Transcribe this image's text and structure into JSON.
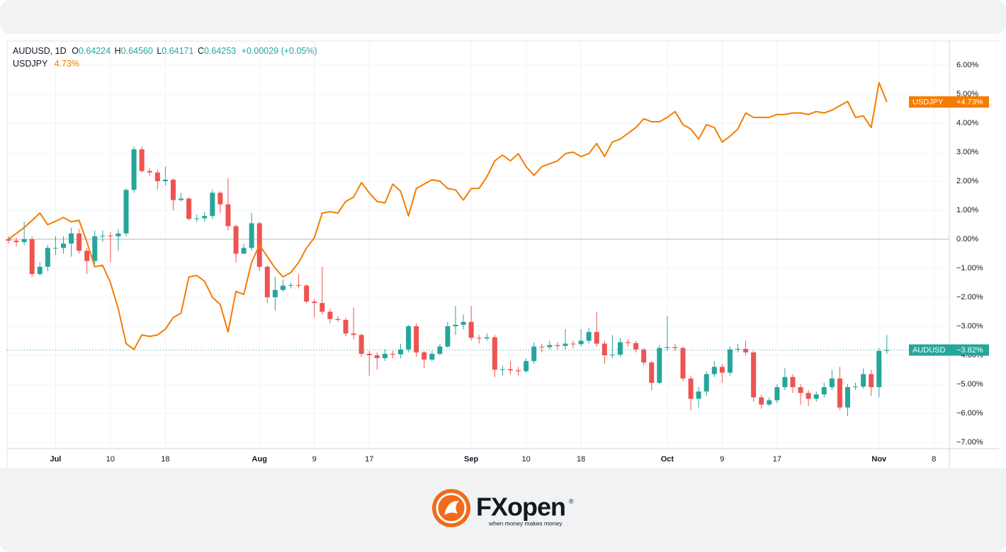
{
  "chart_data": {
    "type": "candlestick",
    "legend": {
      "symbol": "AUDUSD, 1D",
      "fields": [
        {
          "label": "O",
          "value": "0.64224"
        },
        {
          "label": "H",
          "value": "0.64560"
        },
        {
          "label": "L",
          "value": "0.64171"
        },
        {
          "label": "C",
          "value": "0.64253"
        }
      ],
      "change": "+0.00029 (+0.05%)",
      "overlay_value": "4.73%"
    },
    "categories": [
      null,
      null,
      null,
      null,
      null,
      null,
      "Jul",
      null,
      null,
      null,
      null,
      null,
      null,
      "10",
      null,
      null,
      null,
      null,
      null,
      null,
      "18",
      null,
      null,
      null,
      null,
      null,
      null,
      null,
      null,
      null,
      null,
      null,
      "Aug",
      null,
      null,
      null,
      null,
      null,
      null,
      "9",
      null,
      null,
      null,
      null,
      null,
      null,
      "17",
      null,
      null,
      null,
      null,
      null,
      null,
      null,
      null,
      null,
      null,
      null,
      null,
      "Sep",
      null,
      null,
      null,
      null,
      null,
      null,
      "10",
      null,
      null,
      null,
      null,
      null,
      null,
      "18",
      null,
      null,
      null,
      null,
      null,
      null,
      null,
      null,
      null,
      null,
      "Oct",
      null,
      null,
      null,
      null,
      null,
      null,
      "9",
      null,
      null,
      null,
      null,
      null,
      null,
      "17",
      null,
      null,
      null,
      null,
      null,
      null,
      null,
      null,
      null,
      null,
      null,
      null,
      "Nov",
      null,
      null,
      null,
      null,
      null,
      null,
      "8",
      null
    ],
    "series": [
      {
        "name": "AUDUSD",
        "type": "candlestick",
        "up_color": "#26a69a",
        "down_color": "#ef5350",
        "last_label": "−3.82%",
        "open": [
          0,
          -0.05,
          -0.1,
          0.0,
          -1.2,
          -0.95,
          -0.3,
          -0.3,
          -0.15,
          0.2,
          -0.4,
          -0.75,
          0.1,
          0.12,
          0.1,
          0.2,
          1.7,
          3.1,
          2.35,
          2.3,
          2.0,
          2.05,
          1.35,
          1.4,
          0.7,
          0.72,
          0.8,
          1.6,
          1.2,
          0.45,
          -0.5,
          -0.3,
          0.55,
          -0.95,
          -2.0,
          -1.75,
          -1.6,
          -1.58,
          -1.6,
          -2.15,
          -2.2,
          -2.5,
          -2.75,
          -2.78,
          -3.25,
          -3.3,
          -3.95,
          -4.0,
          -4.1,
          -3.95,
          -3.97,
          -3.8,
          -3.0,
          -3.9,
          -4.15,
          -3.95,
          -3.7,
          -3.0,
          -2.95,
          -2.85,
          -3.4,
          -3.42,
          -3.38,
          -4.5,
          -4.48,
          -4.52,
          -4.55,
          -4.2,
          -3.7,
          -3.72,
          -3.65,
          -3.68,
          -3.6,
          -3.62,
          -3.5,
          -3.2,
          -3.6,
          -4.0,
          -3.98,
          -3.55,
          -3.58,
          -3.8,
          -4.25,
          -4.95,
          -3.75,
          -3.72,
          -3.75,
          -4.8,
          -5.5,
          -5.25,
          -4.65,
          -4.4,
          -4.6,
          -3.8,
          -3.78,
          -3.9,
          -5.45,
          -5.7,
          -5.55,
          -5.1,
          -4.75,
          -5.1,
          -5.3,
          -5.5,
          -5.35,
          -5.1,
          -4.8,
          -5.8,
          -5.1,
          -5.08,
          -4.65,
          -5.1,
          -3.85,
          null,
          null,
          null,
          null,
          null,
          null,
          null
        ],
        "high": [
          0.1,
          0.05,
          0.6,
          0.1,
          -0.8,
          -0.2,
          0.1,
          0.1,
          0.4,
          0.35,
          -0.3,
          0.3,
          0.3,
          0.25,
          0.35,
          1.75,
          3.2,
          3.2,
          2.45,
          2.4,
          2.5,
          2.1,
          1.6,
          1.45,
          0.85,
          0.95,
          1.7,
          1.65,
          2.1,
          0.5,
          -0.15,
          0.9,
          0.6,
          -0.9,
          -1.3,
          -1.4,
          -1.5,
          -1.2,
          -1.55,
          -2.05,
          -0.95,
          -2.4,
          -2.65,
          -2.7,
          -2.35,
          -3.25,
          -3.85,
          -3.9,
          -3.8,
          -3.85,
          -3.6,
          -2.95,
          -2.9,
          -3.85,
          -3.85,
          -3.6,
          -2.85,
          -2.3,
          -2.6,
          -2.3,
          -3.3,
          -3.25,
          -3.3,
          -4.35,
          -4.2,
          -4.4,
          -4.1,
          -3.55,
          -3.6,
          -3.5,
          -3.55,
          -3.1,
          -3.5,
          -3.1,
          -3.05,
          -2.5,
          -3.5,
          -3.3,
          -3.4,
          -3.45,
          -3.5,
          -3.75,
          -4.2,
          -3.65,
          -2.65,
          -3.6,
          -3.7,
          -4.7,
          -5.1,
          -4.55,
          -4.2,
          -4.3,
          -3.7,
          -3.6,
          -3.5,
          -3.85,
          -5.35,
          -5.45,
          -5.0,
          -4.45,
          -4.65,
          -5.0,
          -5.2,
          -5.25,
          -4.95,
          -4.5,
          -4.4,
          -5.0,
          -4.95,
          -4.45,
          -4.5,
          -3.75,
          -3.3,
          null,
          null,
          null,
          null,
          null,
          null,
          null
        ],
        "low": [
          -0.15,
          -0.25,
          -0.2,
          -1.3,
          -1.25,
          -1.1,
          -0.55,
          -0.5,
          -0.6,
          -0.5,
          -1.2,
          -0.85,
          -0.1,
          -0.8,
          -0.4,
          0.1,
          1.6,
          2.3,
          2.2,
          1.7,
          1.85,
          1.0,
          1.3,
          0.65,
          0.6,
          0.6,
          0.7,
          0.9,
          0.3,
          -0.8,
          -0.5,
          -0.4,
          -1.1,
          -2.2,
          -2.45,
          -1.8,
          -1.7,
          -1.7,
          -2.2,
          -2.7,
          -2.6,
          -2.9,
          -2.85,
          -3.35,
          -3.45,
          -4.05,
          -4.7,
          -4.5,
          -4.2,
          -4.1,
          -4.1,
          -3.9,
          -4.05,
          -4.45,
          -4.2,
          -4.0,
          -3.75,
          -3.3,
          -3.1,
          -3.5,
          -3.6,
          -3.5,
          -4.75,
          -4.7,
          -4.65,
          -4.7,
          -4.6,
          -4.3,
          -3.9,
          -3.8,
          -3.8,
          -3.8,
          -3.75,
          -3.7,
          -3.6,
          -3.7,
          -4.3,
          -4.1,
          -4.05,
          -3.7,
          -3.9,
          -4.35,
          -5.2,
          -5.0,
          -3.85,
          -3.85,
          -4.9,
          -5.9,
          -5.8,
          -5.4,
          -4.75,
          -4.95,
          -4.7,
          -3.9,
          -4.0,
          -5.6,
          -5.85,
          -5.75,
          -5.65,
          -5.2,
          -5.3,
          -5.7,
          -5.75,
          -5.6,
          -5.45,
          -5.2,
          -5.9,
          -6.1,
          -5.2,
          -5.15,
          -5.4,
          -5.45,
          -3.95,
          null,
          null,
          null,
          null,
          null,
          null,
          null
        ],
        "close": [
          -0.05,
          -0.1,
          0.0,
          -1.2,
          -0.95,
          -0.3,
          -0.3,
          -0.15,
          0.2,
          -0.4,
          -0.75,
          0.1,
          0.12,
          0.1,
          0.2,
          1.7,
          3.1,
          2.35,
          2.3,
          2.0,
          2.05,
          1.35,
          1.4,
          0.7,
          0.72,
          0.8,
          1.6,
          1.2,
          0.45,
          -0.5,
          -0.3,
          0.55,
          -0.95,
          -2.0,
          -1.75,
          -1.6,
          -1.58,
          -1.6,
          -2.15,
          -2.2,
          -2.5,
          -2.75,
          -2.78,
          -3.25,
          -3.3,
          -3.95,
          -4.0,
          -4.1,
          -3.95,
          -3.97,
          -3.8,
          -3.0,
          -3.9,
          -4.15,
          -3.95,
          -3.7,
          -3.0,
          -2.95,
          -2.85,
          -3.4,
          -3.42,
          -3.38,
          -4.5,
          -4.48,
          -4.52,
          -4.55,
          -4.2,
          -3.7,
          -3.72,
          -3.65,
          -3.68,
          -3.6,
          -3.62,
          -3.5,
          -3.2,
          -3.6,
          -4.0,
          -3.98,
          -3.55,
          -3.58,
          -3.8,
          -4.25,
          -4.95,
          -3.75,
          -3.72,
          -3.75,
          -4.8,
          -5.5,
          -5.25,
          -4.65,
          -4.4,
          -4.6,
          -3.8,
          -3.78,
          -3.9,
          -5.45,
          -5.7,
          -5.55,
          -5.1,
          -4.75,
          -5.1,
          -5.3,
          -5.5,
          -5.35,
          -5.1,
          -4.8,
          -5.8,
          -5.1,
          -5.08,
          -4.65,
          -5.1,
          -3.85,
          -3.82,
          null,
          null,
          null,
          null,
          null,
          null,
          null
        ]
      },
      {
        "name": "USDJPY",
        "type": "line",
        "color": "#f57c00",
        "last_label": "+4.73%",
        "values": [
          0.0,
          0.2,
          0.4,
          0.65,
          0.9,
          0.5,
          0.62,
          0.75,
          0.6,
          0.65,
          -0.1,
          -0.95,
          -0.9,
          -1.5,
          -2.4,
          -3.6,
          -3.8,
          -3.3,
          -3.35,
          -3.3,
          -3.1,
          -2.7,
          -2.55,
          -1.3,
          -1.25,
          -1.45,
          -2.0,
          -2.25,
          -3.2,
          -1.8,
          -1.9,
          -0.8,
          -0.2,
          -0.6,
          -1.0,
          -1.3,
          -1.15,
          -0.8,
          -0.3,
          0.05,
          0.9,
          0.95,
          0.9,
          1.3,
          1.45,
          1.95,
          1.6,
          1.3,
          1.25,
          1.9,
          1.65,
          0.8,
          1.75,
          1.9,
          2.05,
          2.0,
          1.75,
          1.7,
          1.35,
          1.75,
          1.75,
          2.15,
          2.7,
          2.9,
          2.7,
          2.95,
          2.5,
          2.2,
          2.5,
          2.6,
          2.7,
          2.95,
          3.0,
          2.85,
          2.95,
          3.3,
          2.85,
          3.35,
          3.45,
          3.65,
          3.85,
          4.15,
          4.05,
          4.05,
          4.2,
          4.4,
          3.95,
          3.8,
          3.45,
          3.95,
          3.85,
          3.35,
          3.55,
          3.8,
          4.35,
          4.2,
          4.2,
          4.2,
          4.3,
          4.3,
          4.35,
          4.35,
          4.3,
          4.4,
          4.35,
          4.45,
          4.6,
          4.75,
          4.2,
          4.25,
          3.85,
          5.4,
          4.73,
          null,
          null,
          null,
          null,
          null,
          null,
          null
        ]
      }
    ],
    "ylim": [
      -7.22,
      6.83
    ],
    "yticks": [
      {
        "value": 6,
        "label": "6.00%"
      },
      {
        "value": 5,
        "label": "5.00%"
      },
      {
        "value": 4,
        "label": "4.00%"
      },
      {
        "value": 3,
        "label": "3.00%"
      },
      {
        "value": 2,
        "label": "2.00%"
      },
      {
        "value": 1,
        "label": "1.00%"
      },
      {
        "value": 0,
        "label": "0.00%"
      },
      {
        "value": -1,
        "label": "−1.00%"
      },
      {
        "value": -2,
        "label": "−2.00%"
      },
      {
        "value": -3,
        "label": "−3.00%"
      },
      {
        "value": -4,
        "label": "−4.00%"
      },
      {
        "value": -5,
        "label": "−5.00%"
      },
      {
        "value": -6,
        "label": "−6.00%"
      },
      {
        "value": -7,
        "label": "−7.00%"
      }
    ],
    "grid": true
  },
  "brand": {
    "name": "FXopen",
    "tagline": "when money makes money",
    "mark": "®"
  }
}
